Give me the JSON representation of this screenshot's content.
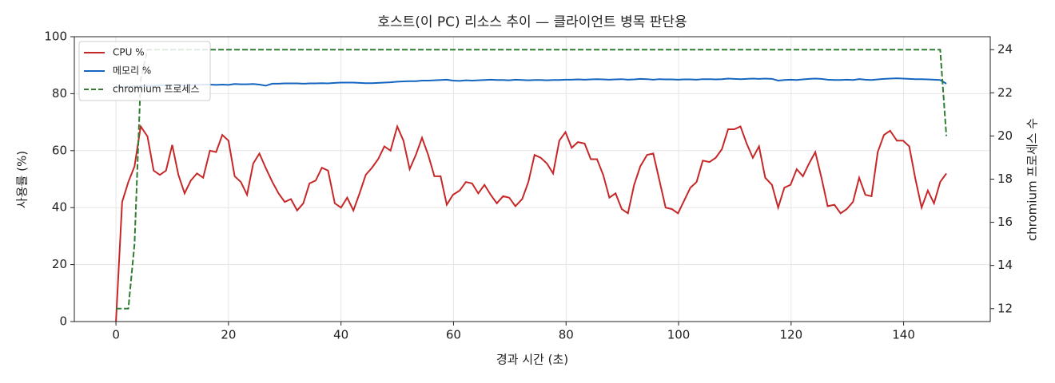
{
  "chart_data": {
    "type": "line",
    "title": "호스트(이 PC) 리소스 추이 — 클라이언트 병목 판단용",
    "x_label": "경과 시간 (초)",
    "y_label": "사용률 (%)",
    "y2_label": "chromium 프로세스 수",
    "x": [
      0,
      1.1,
      2.2,
      3.3,
      4.4,
      5.6,
      6.7,
      7.8,
      8.9,
      10,
      11.1,
      12.2,
      13.3,
      14.4,
      15.5,
      16.7,
      17.8,
      18.9,
      20,
      21.1,
      22.2,
      23.3,
      24.4,
      25.5,
      26.6,
      27.8,
      28.9,
      30,
      31.1,
      32.2,
      33.3,
      34.4,
      35.5,
      36.6,
      37.7,
      38.9,
      40,
      41.1,
      42.2,
      43.3,
      44.4,
      45.5,
      46.6,
      47.7,
      48.8,
      50,
      51.1,
      52.2,
      53.3,
      54.4,
      55.5,
      56.6,
      57.7,
      58.8,
      59.9,
      61.1,
      62.2,
      63.3,
      64.4,
      65.5,
      66.6,
      67.7,
      68.8,
      69.9,
      71,
      72.2,
      73.3,
      74.4,
      75.5,
      76.6,
      77.7,
      78.8,
      79.9,
      81,
      82.1,
      83.3,
      84.4,
      85.5,
      86.6,
      87.7,
      88.8,
      89.9,
      91,
      92.1,
      93.2,
      94.4,
      95.5,
      96.6,
      97.7,
      98.8,
      99.9,
      101,
      102.1,
      103.2,
      104.3,
      105.5,
      106.6,
      107.7,
      108.8,
      109.9,
      111,
      112.1,
      113.2,
      114.3,
      115.4,
      116.6,
      117.7,
      118.8,
      119.9,
      121,
      122.1,
      123.2,
      124.3,
      125.4,
      126.5,
      127.7,
      128.8,
      129.9,
      131,
      132.1,
      133.2,
      134.3,
      135.4,
      136.5,
      137.6,
      138.8,
      139.9,
      141,
      142.1,
      143.2,
      144.3,
      145.4,
      146.5,
      147.6
    ],
    "series": [
      {
        "name": "CPU %",
        "color": "#c62828",
        "values": [
          0,
          42,
          49,
          54.5,
          68.5,
          65,
          53,
          51.5,
          53,
          62,
          51.5,
          45,
          49.5,
          52,
          50.5,
          60,
          59.5,
          65.5,
          63.5,
          51,
          49,
          44.5,
          55.5,
          59,
          54,
          49,
          45,
          42,
          43,
          39,
          41.5,
          48.5,
          49.5,
          54,
          53,
          41.5,
          40,
          43.5,
          39,
          45,
          51.5,
          54,
          57,
          61.5,
          60,
          68.5,
          63.5,
          53.5,
          58.5,
          64.5,
          58.5,
          51,
          51,
          41,
          44.5,
          46,
          49,
          48.5,
          45,
          48,
          44.5,
          41.5,
          44,
          43.5,
          40.5,
          43,
          49,
          58.5,
          57.5,
          55.5,
          52,
          63.5,
          66.5,
          61,
          63,
          62.5,
          57,
          57,
          51.5,
          43.5,
          45,
          39.5,
          38,
          48,
          54.5,
          58.5,
          59,
          49.5,
          40,
          39.5,
          38,
          42.5,
          47,
          49,
          56.5,
          56,
          57.5,
          60.5,
          67.5,
          67.5,
          68.5,
          62.5,
          57.5,
          61.5,
          50.5,
          48,
          40,
          47,
          48,
          53.5,
          51,
          55.5,
          59.5,
          50.5,
          40.5,
          41,
          38,
          39.5,
          42,
          50.5,
          44.5,
          44,
          59.5,
          65.5,
          67,
          63.5,
          63.5,
          61.5,
          50,
          40,
          46,
          41.5,
          49,
          52
        ]
      },
      {
        "name": "메모리 %",
        "color": "#1565c0",
        "values": [
          82.3,
          82.4,
          82.5,
          82.6,
          82.7,
          82.8,
          82.8,
          82.9,
          82.9,
          83,
          83,
          83,
          83.1,
          83.1,
          83.2,
          83.2,
          83.1,
          83.2,
          83.1,
          83.4,
          83.3,
          83.3,
          83.4,
          83.2,
          82.8,
          83.5,
          83.5,
          83.6,
          83.6,
          83.6,
          83.5,
          83.6,
          83.6,
          83.7,
          83.6,
          83.8,
          83.9,
          83.9,
          83.9,
          83.8,
          83.7,
          83.7,
          83.8,
          83.9,
          84,
          84.2,
          84.3,
          84.4,
          84.4,
          84.6,
          84.6,
          84.7,
          84.8,
          84.9,
          84.6,
          84.5,
          84.7,
          84.6,
          84.7,
          84.8,
          84.9,
          84.8,
          84.8,
          84.7,
          84.9,
          84.8,
          84.7,
          84.8,
          84.8,
          84.7,
          84.8,
          84.8,
          84.9,
          84.9,
          85,
          84.9,
          85,
          85.1,
          85,
          84.9,
          85,
          85.1,
          84.9,
          85,
          85.2,
          85.1,
          84.9,
          85.1,
          85,
          85,
          84.9,
          85,
          85,
          84.9,
          85.1,
          85.1,
          85,
          85.1,
          85.3,
          85.2,
          85.1,
          85.2,
          85.3,
          85.2,
          85.3,
          85.2,
          84.6,
          84.8,
          84.9,
          84.8,
          85,
          85.2,
          85.3,
          85.2,
          84.9,
          84.8,
          84.8,
          84.9,
          84.8,
          85.1,
          84.9,
          84.8,
          85,
          85.2,
          85.3,
          85.4,
          85.3,
          85.2,
          85.1,
          85.1,
          85,
          84.9,
          84.8,
          83.5
        ]
      },
      {
        "name": "chromium 프로세스",
        "color": "#2e7d32",
        "dashed": true,
        "axis": "y2",
        "values": [
          12,
          12,
          12,
          15,
          22.6,
          24,
          24,
          24,
          24,
          24,
          24,
          24,
          24,
          24,
          24,
          24,
          24,
          24,
          24,
          24,
          24,
          24,
          24,
          24,
          24,
          24,
          24,
          24,
          24,
          24,
          24,
          24,
          24,
          24,
          24,
          24,
          24,
          24,
          24,
          24,
          24,
          24,
          24,
          24,
          24,
          24,
          24,
          24,
          24,
          24,
          24,
          24,
          24,
          24,
          24,
          24,
          24,
          24,
          24,
          24,
          24,
          24,
          24,
          24,
          24,
          24,
          24,
          24,
          24,
          24,
          24,
          24,
          24,
          24,
          24,
          24,
          24,
          24,
          24,
          24,
          24,
          24,
          24,
          24,
          24,
          24,
          24,
          24,
          24,
          24,
          24,
          24,
          24,
          24,
          24,
          24,
          24,
          24,
          24,
          24,
          24,
          24,
          24,
          24,
          24,
          24,
          24,
          24,
          24,
          24,
          24,
          24,
          24,
          24,
          24,
          24,
          24,
          24,
          24,
          24,
          24,
          24,
          24,
          24,
          24,
          24,
          24,
          24,
          24,
          24,
          24,
          24,
          24,
          20
        ]
      }
    ],
    "xlim": [
      -7.4,
      155.4
    ],
    "xticks": [
      0,
      20,
      40,
      60,
      80,
      100,
      120,
      140
    ],
    "ylim": [
      0,
      100
    ],
    "yticks": [
      0,
      20,
      40,
      60,
      80,
      100
    ],
    "y2lim": [
      11.4,
      24.6
    ],
    "y2ticks": [
      12,
      14,
      16,
      18,
      20,
      22,
      24
    ],
    "grid": true,
    "legend": "upper left"
  }
}
